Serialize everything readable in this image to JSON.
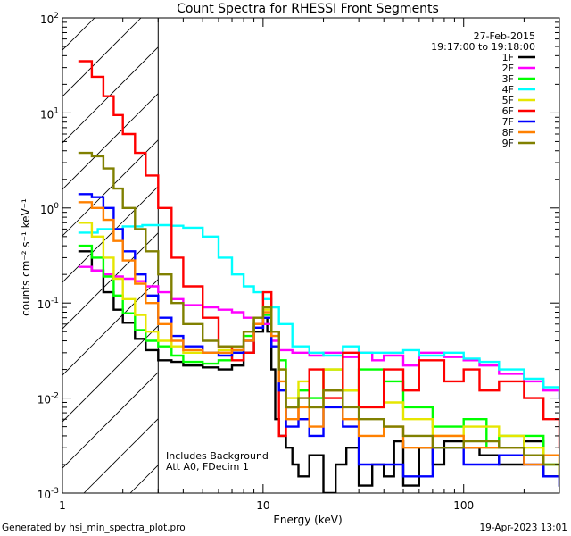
{
  "footer": {
    "generated": "Generated by hsi_min_spectra_plot.pro",
    "date": "19-Apr-2023 13:01"
  },
  "chart_data": {
    "type": "line",
    "title": "Count Spectra for RHESSI Front Segments",
    "xlabel": "Energy (keV)",
    "ylabel": "counts cm⁻² s⁻¹ keV⁻¹",
    "xscale": "log",
    "yscale": "log",
    "xlim": [
      1,
      300
    ],
    "ylim": [
      0.001,
      100
    ],
    "x_tick_labels": [
      {
        "value": 1,
        "label": "1"
      },
      {
        "value": 10,
        "label": "10"
      },
      {
        "value": 100,
        "label": "100"
      }
    ],
    "y_tick_labels": [
      {
        "value": 100,
        "base": "10",
        "exp": "2"
      },
      {
        "value": 10,
        "base": "10",
        "exp": "1"
      },
      {
        "value": 1,
        "base": "10",
        "exp": "0"
      },
      {
        "value": 0.1,
        "base": "10",
        "exp": "-1"
      },
      {
        "value": 0.01,
        "base": "10",
        "exp": "-2"
      },
      {
        "value": 0.001,
        "base": "10",
        "exp": "-3"
      }
    ],
    "date": "27-Feb-2015",
    "time_range": "19:17:00 to 19:18:00",
    "notes": [
      "Includes Background",
      "Att A0, FDecim 1"
    ],
    "excluded_region_keV": [
      1,
      3
    ],
    "series": [
      {
        "name": "1F",
        "color": "#000000",
        "x": [
          1.2,
          1.4,
          1.6,
          1.8,
          2.0,
          2.3,
          2.6,
          3.0,
          3.5,
          4,
          5,
          6,
          7,
          8,
          9,
          10,
          10.5,
          11,
          11.5,
          12,
          13,
          14,
          15,
          17,
          20,
          23,
          26,
          30,
          35,
          40,
          45,
          50,
          60,
          70,
          80,
          100,
          120,
          150,
          200,
          250,
          300
        ],
        "y": [
          0.35,
          0.22,
          0.13,
          0.085,
          0.062,
          0.042,
          0.032,
          0.025,
          0.024,
          0.022,
          0.021,
          0.02,
          0.022,
          0.03,
          0.05,
          0.07,
          0.05,
          0.02,
          0.006,
          0.004,
          0.003,
          0.002,
          0.0015,
          0.0025,
          0.001,
          0.002,
          0.003,
          0.0012,
          0.002,
          0.0015,
          0.0035,
          0.0012,
          0.003,
          0.002,
          0.0035,
          0.003,
          0.0025,
          0.002,
          0.0035,
          0.0015,
          0.0012
        ]
      },
      {
        "name": "2F",
        "color": "#ff00ff",
        "x": [
          1.2,
          1.4,
          1.6,
          1.8,
          2.0,
          2.3,
          2.6,
          3.0,
          3.5,
          4,
          5,
          6,
          7,
          8,
          9,
          10,
          11,
          12,
          14,
          17,
          20,
          25,
          30,
          35,
          40,
          50,
          60,
          80,
          100,
          120,
          150,
          200,
          250,
          300
        ],
        "y": [
          0.24,
          0.22,
          0.2,
          0.19,
          0.18,
          0.17,
          0.15,
          0.13,
          0.11,
          0.095,
          0.09,
          0.085,
          0.08,
          0.07,
          0.055,
          0.06,
          0.04,
          0.032,
          0.03,
          0.028,
          0.03,
          0.027,
          0.03,
          0.025,
          0.028,
          0.022,
          0.03,
          0.027,
          0.025,
          0.022,
          0.018,
          0.015,
          0.012,
          0.01
        ]
      },
      {
        "name": "3F",
        "color": "#00ff00",
        "x": [
          1.2,
          1.4,
          1.6,
          1.8,
          2.0,
          2.3,
          2.6,
          3.0,
          3.5,
          4,
          5,
          6,
          7,
          8,
          9,
          10,
          11,
          12,
          13,
          15,
          17,
          20,
          25,
          30,
          40,
          50,
          70,
          100,
          130,
          150,
          200,
          250,
          300
        ],
        "y": [
          0.4,
          0.3,
          0.19,
          0.12,
          0.078,
          0.052,
          0.04,
          0.035,
          0.028,
          0.024,
          0.023,
          0.025,
          0.03,
          0.045,
          0.06,
          0.075,
          0.05,
          0.025,
          0.008,
          0.012,
          0.01,
          0.02,
          0.012,
          0.02,
          0.015,
          0.008,
          0.005,
          0.006,
          0.003,
          0.004,
          0.004,
          0.002,
          0.0015
        ]
      },
      {
        "name": "4F",
        "color": "#00ffff",
        "x": [
          1.2,
          1.5,
          2,
          2.5,
          3,
          3.5,
          4,
          5,
          6,
          7,
          8,
          9,
          10,
          11,
          12,
          14,
          17,
          20,
          25,
          30,
          40,
          50,
          60,
          80,
          100,
          120,
          150,
          200,
          250,
          300
        ],
        "y": [
          0.55,
          0.6,
          0.64,
          0.66,
          0.66,
          0.65,
          0.62,
          0.5,
          0.3,
          0.2,
          0.15,
          0.13,
          0.11,
          0.09,
          0.06,
          0.035,
          0.03,
          0.028,
          0.035,
          0.03,
          0.03,
          0.032,
          0.028,
          0.03,
          0.026,
          0.024,
          0.02,
          0.016,
          0.013,
          0.01
        ]
      },
      {
        "name": "5F",
        "color": "#e6e600",
        "x": [
          1.2,
          1.4,
          1.6,
          1.8,
          2.0,
          2.3,
          2.6,
          3.0,
          3.5,
          4,
          5,
          6,
          7,
          8,
          9,
          10,
          11,
          12,
          13,
          15,
          17,
          20,
          25,
          30,
          40,
          50,
          70,
          100,
          150,
          200,
          250,
          300
        ],
        "y": [
          0.7,
          0.5,
          0.3,
          0.18,
          0.11,
          0.075,
          0.05,
          0.04,
          0.035,
          0.03,
          0.03,
          0.032,
          0.035,
          0.05,
          0.07,
          0.085,
          0.05,
          0.02,
          0.01,
          0.015,
          0.008,
          0.02,
          0.012,
          0.008,
          0.009,
          0.006,
          0.004,
          0.005,
          0.004,
          0.003,
          0.0025,
          0.0015
        ]
      },
      {
        "name": "6F",
        "color": "#ff0000",
        "x": [
          1.2,
          1.4,
          1.6,
          1.8,
          2.0,
          2.3,
          2.6,
          3.0,
          3.5,
          4,
          5,
          6,
          7,
          8,
          9,
          10,
          11,
          12,
          13,
          15,
          17,
          20,
          25,
          30,
          40,
          50,
          60,
          80,
          100,
          120,
          150,
          200,
          250,
          300
        ],
        "y": [
          35,
          24,
          15,
          9.5,
          6,
          3.8,
          2.2,
          1.0,
          0.3,
          0.15,
          0.07,
          0.035,
          0.025,
          0.03,
          0.06,
          0.13,
          0.05,
          0.004,
          0.008,
          0.006,
          0.02,
          0.01,
          0.03,
          0.008,
          0.02,
          0.012,
          0.025,
          0.015,
          0.02,
          0.012,
          0.015,
          0.01,
          0.006,
          0.003
        ]
      },
      {
        "name": "7F",
        "color": "#0000ff",
        "x": [
          1.2,
          1.4,
          1.6,
          1.8,
          2.0,
          2.3,
          2.6,
          3.0,
          3.5,
          4,
          5,
          6,
          7,
          8,
          9,
          10,
          11,
          12,
          13,
          15,
          17,
          20,
          25,
          30,
          40,
          50,
          70,
          100,
          150,
          200,
          250,
          300
        ],
        "y": [
          1.4,
          1.3,
          1.0,
          0.6,
          0.35,
          0.2,
          0.12,
          0.07,
          0.045,
          0.035,
          0.03,
          0.028,
          0.03,
          0.04,
          0.055,
          0.07,
          0.035,
          0.012,
          0.005,
          0.006,
          0.004,
          0.008,
          0.005,
          0.002,
          0.002,
          0.0015,
          0.003,
          0.002,
          0.0025,
          0.002,
          0.0015,
          0.0012
        ]
      },
      {
        "name": "8F",
        "color": "#ff8000",
        "x": [
          1.2,
          1.4,
          1.6,
          1.8,
          2.0,
          2.3,
          2.6,
          3.0,
          3.5,
          4,
          5,
          6,
          7,
          8,
          9,
          10,
          11,
          12,
          13,
          15,
          17,
          20,
          25,
          30,
          40,
          50,
          70,
          100,
          150,
          200,
          250,
          300
        ],
        "y": [
          1.15,
          1.0,
          0.75,
          0.45,
          0.28,
          0.16,
          0.1,
          0.06,
          0.04,
          0.032,
          0.03,
          0.03,
          0.032,
          0.04,
          0.06,
          0.08,
          0.045,
          0.015,
          0.006,
          0.008,
          0.005,
          0.012,
          0.006,
          0.004,
          0.005,
          0.003,
          0.004,
          0.003,
          0.003,
          0.002,
          0.0025,
          0.0015
        ]
      },
      {
        "name": "9F",
        "color": "#808000",
        "x": [
          1.2,
          1.4,
          1.6,
          1.8,
          2.0,
          2.3,
          2.6,
          3.0,
          3.5,
          4,
          5,
          6,
          7,
          8,
          9,
          10,
          11,
          12,
          13,
          15,
          17,
          20,
          25,
          30,
          40,
          50,
          70,
          100,
          150,
          200,
          250,
          300
        ],
        "y": [
          3.8,
          3.5,
          2.6,
          1.6,
          1.0,
          0.6,
          0.35,
          0.2,
          0.1,
          0.06,
          0.04,
          0.035,
          0.035,
          0.05,
          0.07,
          0.09,
          0.05,
          0.02,
          0.008,
          0.01,
          0.008,
          0.012,
          0.008,
          0.006,
          0.005,
          0.004,
          0.003,
          0.0035,
          0.003,
          0.0025,
          0.002,
          0.0015
        ]
      }
    ]
  }
}
